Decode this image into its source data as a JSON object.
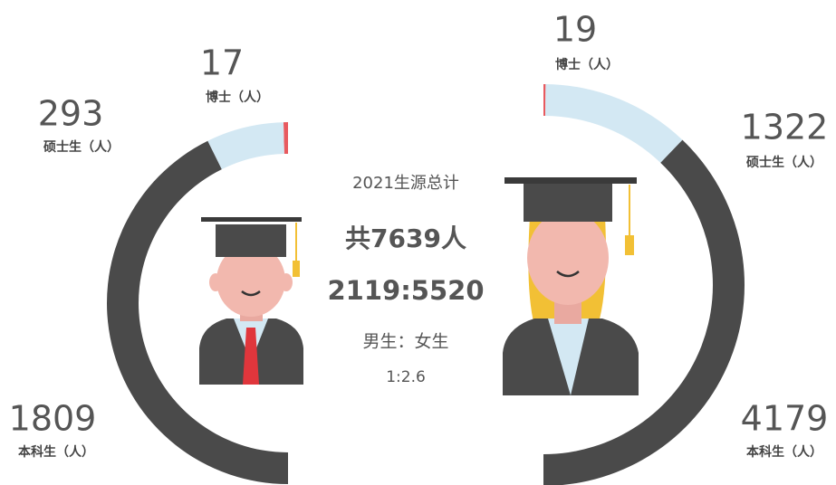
{
  "chart_data": [
    {
      "type": "semi-donut",
      "categories": [
        "博士（人）",
        "硕士生（人）",
        "本科生（人）"
      ],
      "values": [
        17,
        293,
        1809
      ],
      "colors": [
        "#e85a5f",
        "#d3e8f3",
        "#4a4a4a"
      ]
    },
    {
      "type": "semi-donut",
      "categories": [
        "博士（人）",
        "硕士生（人）",
        "本科生（人）"
      ],
      "values": [
        19,
        1322,
        4179
      ],
      "colors": [
        "#e85a5f",
        "#d3e8f3",
        "#4a4a4a"
      ]
    }
  ],
  "summary": {
    "title": "2021生源总计",
    "total": "共7639人",
    "ratio_counts": "2119:5520",
    "ratio_label": "男生：女生",
    "ratio": "1:2.6"
  }
}
